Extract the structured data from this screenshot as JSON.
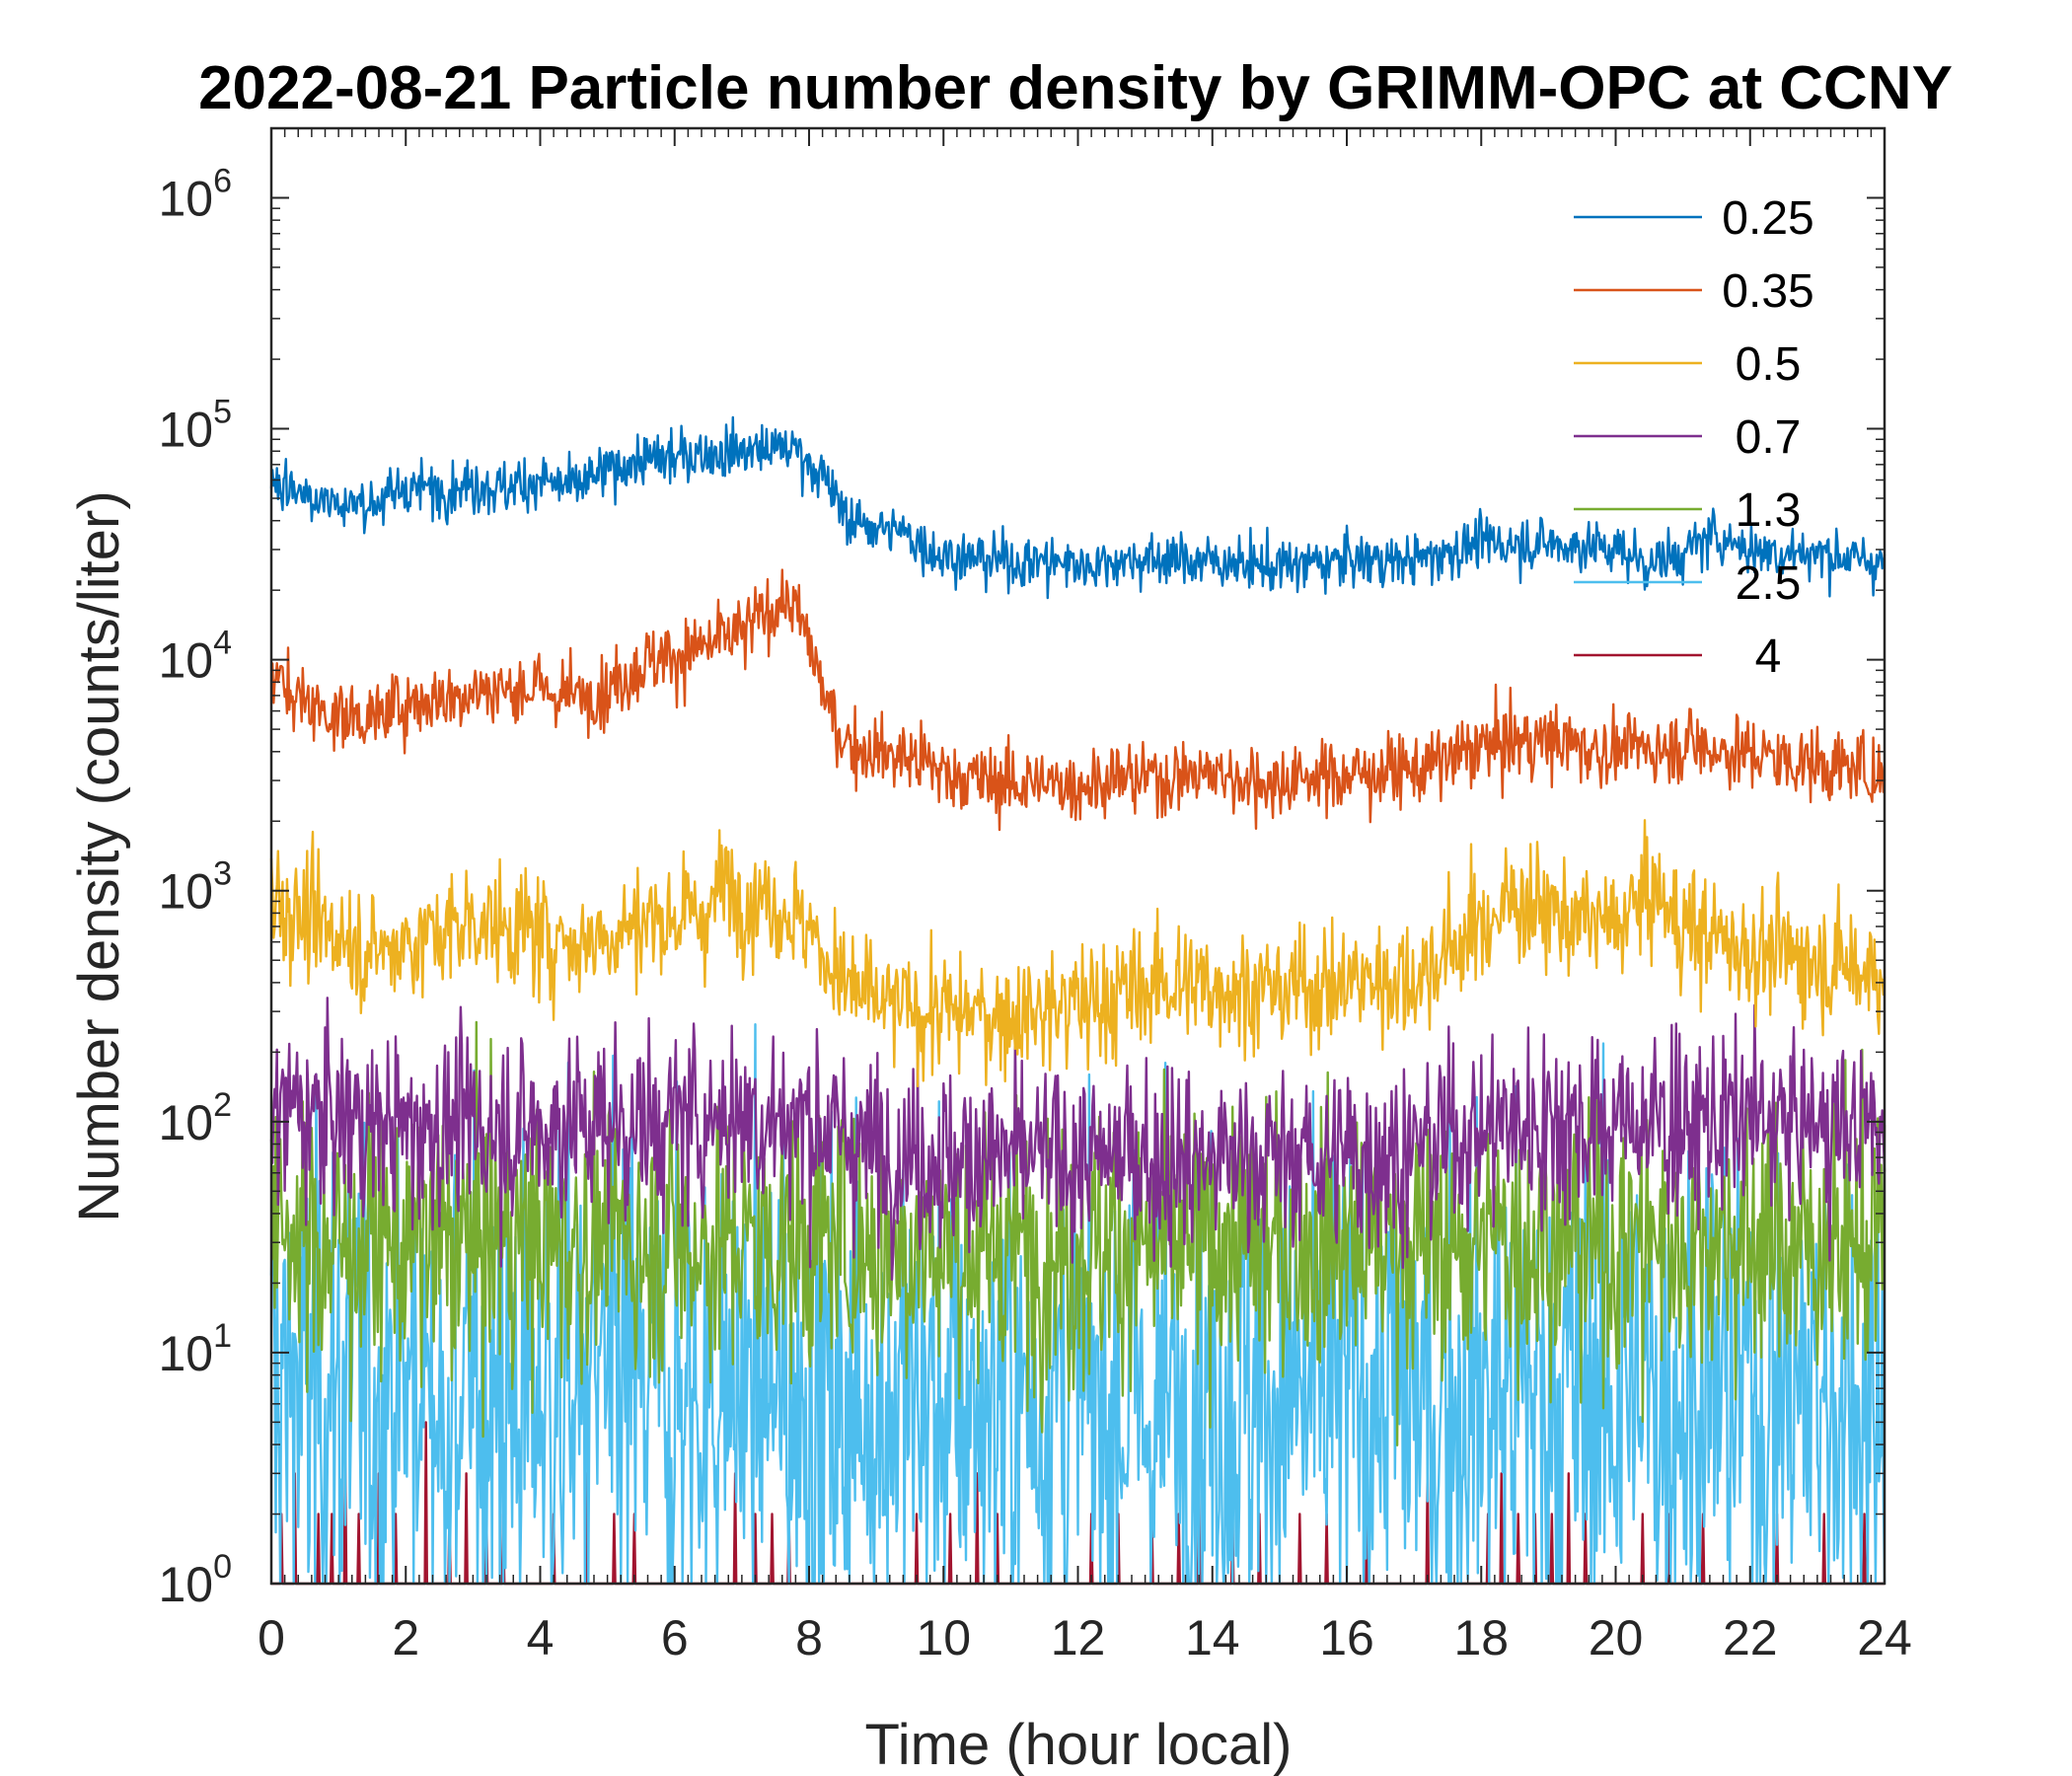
{
  "chart_data": {
    "type": "line",
    "title": "2022-08-21 Particle number density by GRIMM-OPC at CCNY",
    "xlabel": "Time (hour local)",
    "ylabel": "Number density (counts/liter)",
    "xlim": [
      0,
      24
    ],
    "ylim": [
      1,
      2000000
    ],
    "yscale": "log",
    "grid": false,
    "legend_position": "top-right",
    "x_ticks": [
      0,
      2,
      4,
      6,
      8,
      10,
      12,
      14,
      16,
      18,
      20,
      22,
      24
    ],
    "x_tick_labels": [
      "0",
      "2",
      "4",
      "6",
      "8",
      "10",
      "12",
      "14",
      "16",
      "18",
      "20",
      "22",
      "24"
    ],
    "y_ticks": [
      1,
      10,
      100,
      1000,
      10000,
      100000,
      1000000
    ],
    "y_tick_labels": [
      {
        "base": "10",
        "exp": "0"
      },
      {
        "base": "10",
        "exp": "1"
      },
      {
        "base": "10",
        "exp": "2"
      },
      {
        "base": "10",
        "exp": "3"
      },
      {
        "base": "10",
        "exp": "4"
      },
      {
        "base": "10",
        "exp": "5"
      },
      {
        "base": "10",
        "exp": "6"
      }
    ],
    "series": [
      {
        "name": "0.25",
        "legend_label": "0.25",
        "color": "#0072BD",
        "noise": 0.08,
        "x": [
          0,
          0.5,
          1,
          1.5,
          2,
          2.5,
          3,
          3.5,
          4,
          4.5,
          5,
          5.5,
          6,
          6.5,
          7,
          7.5,
          7.8,
          8.2,
          8.6,
          9,
          9.5,
          10,
          10.5,
          11,
          12,
          13,
          14,
          15,
          16,
          17,
          18,
          19,
          20,
          20.5,
          21,
          21.5,
          22,
          23,
          24
        ],
        "y": [
          60000,
          53000,
          47000,
          48000,
          55000,
          55000,
          58000,
          55000,
          60000,
          55000,
          66000,
          72000,
          75000,
          78000,
          80000,
          82000,
          82000,
          62000,
          40000,
          38000,
          34000,
          28000,
          27000,
          27000,
          26000,
          27000,
          27000,
          25000,
          27000,
          27000,
          32000,
          32000,
          30000,
          26000,
          29000,
          35000,
          30000,
          29000,
          26000
        ]
      },
      {
        "name": "0.35",
        "legend_label": "0.35",
        "color": "#D95319",
        "noise": 0.11,
        "x": [
          0,
          0.5,
          1,
          1.5,
          2,
          2.5,
          3,
          3.5,
          4,
          4.5,
          5,
          5.5,
          6,
          6.5,
          7,
          7.5,
          7.7,
          8,
          8.3,
          8.6,
          9,
          9.5,
          10,
          10.5,
          11,
          12,
          13,
          14,
          15,
          16,
          17,
          18,
          19,
          20,
          21,
          22,
          23,
          24
        ],
        "y": [
          8500,
          6500,
          5700,
          5500,
          6500,
          6800,
          7200,
          7500,
          7500,
          7000,
          7500,
          9500,
          10500,
          11500,
          13000,
          17000,
          18000,
          12000,
          6000,
          4300,
          4000,
          3700,
          3300,
          3000,
          2900,
          2900,
          3100,
          3200,
          2900,
          3200,
          3300,
          4200,
          4500,
          4000,
          4300,
          3900,
          3500,
          3200
        ]
      },
      {
        "name": "0.5",
        "legend_label": "0.5",
        "color": "#EDB120",
        "noise": 0.18,
        "x": [
          0,
          0.5,
          1,
          1.5,
          2,
          2.5,
          3,
          3.5,
          4,
          4.5,
          5,
          5.5,
          6,
          6.5,
          6.7,
          7,
          7.5,
          8,
          8.5,
          9,
          10,
          11,
          12,
          13,
          14,
          15,
          16,
          17,
          18,
          18.5,
          19,
          20,
          20.5,
          21,
          22,
          23,
          24
        ],
        "y": [
          950,
          750,
          650,
          550,
          600,
          650,
          750,
          700,
          650,
          600,
          650,
          750,
          750,
          800,
          1100,
          900,
          900,
          700,
          400,
          320,
          290,
          300,
          320,
          380,
          400,
          370,
          400,
          420,
          700,
          900,
          800,
          700,
          1000,
          700,
          550,
          500,
          450
        ]
      },
      {
        "name": "0.7",
        "legend_label": "0.7",
        "color": "#7E2F8E",
        "noise": 0.28,
        "x": [
          0,
          2,
          4,
          6,
          7,
          8,
          9,
          10,
          12,
          14,
          16,
          17,
          18,
          19,
          20,
          21,
          22,
          24
        ],
        "y": [
          110,
          95,
          95,
          100,
          110,
          100,
          75,
          70,
          70,
          70,
          70,
          75,
          95,
          100,
          100,
          100,
          100,
          95
        ]
      },
      {
        "name": "1.3",
        "legend_label": "1.3",
        "color": "#77AC30",
        "noise": 0.4,
        "x": [
          0,
          6,
          12,
          18,
          24
        ],
        "y": [
          30,
          30,
          28,
          30,
          30
        ]
      },
      {
        "name": "2.5",
        "legend_label": "2.5",
        "color": "#4DBEEE",
        "noise": 0.8,
        "x": [
          0,
          6,
          12,
          18,
          24
        ],
        "y": [
          7,
          6.5,
          6,
          6.5,
          6.5
        ]
      },
      {
        "name": "4",
        "legend_label": "4",
        "color": "#A2142F",
        "noise": 0.0,
        "x": [
          0,
          24
        ],
        "y": [
          1,
          1
        ],
        "spikes": [
          0.15,
          0.35,
          0.7,
          0.9,
          1.1,
          1.3,
          1.6,
          1.85,
          2.3,
          2.65,
          2.9,
          3.2,
          3.45,
          4.2,
          4.7,
          5.1,
          5.4,
          6.9,
          7.2,
          7.45,
          7.7,
          9.6,
          10.1,
          10.5,
          10.8,
          12.2,
          12.6,
          13.1,
          13.5,
          13.8,
          14.3,
          14.7,
          15.3,
          15.7,
          16.3,
          17.2,
          18.1,
          18.3,
          18.55,
          18.8,
          19.05,
          19.3,
          19.55,
          20.4,
          20.8,
          21.3,
          22.4,
          23.1,
          23.7
        ],
        "spike_heights": [
          2,
          3,
          2,
          2,
          4,
          2,
          3,
          2,
          5,
          2,
          3,
          2,
          2,
          2,
          3,
          2,
          2,
          3,
          2,
          2,
          2,
          2,
          2,
          3,
          2,
          2,
          2,
          2,
          2,
          3,
          2,
          2,
          2,
          2,
          2,
          3,
          2,
          3,
          2,
          2,
          2,
          3,
          2,
          2,
          2,
          2,
          2,
          2,
          2
        ]
      }
    ]
  }
}
